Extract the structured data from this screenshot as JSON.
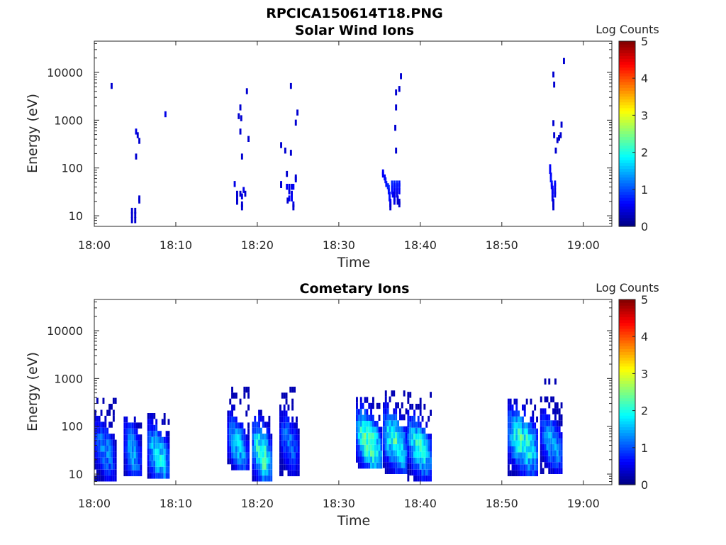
{
  "figure_title": "RPCICA150614T18.PNG",
  "chart_data": [
    {
      "type": "heatmap",
      "title": "Solar Wind Ions",
      "xlabel": "Time",
      "ylabel": "Energy (eV)",
      "x_ticks": [
        "18:00",
        "18:10",
        "18:20",
        "18:30",
        "18:40",
        "18:50",
        "19:00"
      ],
      "x_range_minutes": [
        0,
        63.5
      ],
      "y_scale": "log",
      "y_ticks": [
        "10",
        "100",
        "1000",
        "10000"
      ],
      "y_range": [
        6,
        45000
      ],
      "colorbar": {
        "label": "Log Counts",
        "ticks": [
          "0",
          "1",
          "2",
          "3",
          "4",
          "5"
        ],
        "range": [
          0,
          5
        ],
        "colormap": "jet"
      },
      "grid": false,
      "cells": [
        [
          2.0,
          4500,
          0.4
        ],
        [
          4.5,
          11,
          0.4
        ],
        [
          4.5,
          9,
          0.4
        ],
        [
          4.5,
          7,
          0.4
        ],
        [
          4.9,
          11,
          0.4
        ],
        [
          4.9,
          9,
          0.4
        ],
        [
          4.9,
          7,
          0.4
        ],
        [
          5.0,
          500,
          0.5
        ],
        [
          5.0,
          150,
          0.4
        ],
        [
          5.2,
          420,
          0.4
        ],
        [
          5.4,
          320,
          0.4
        ],
        [
          5.4,
          20,
          0.4
        ],
        [
          5.4,
          18,
          0.4
        ],
        [
          8.6,
          1150,
          0.5
        ],
        [
          17.1,
          40,
          0.5
        ],
        [
          17.4,
          25,
          0.4
        ],
        [
          17.4,
          20,
          0.4
        ],
        [
          17.4,
          17,
          0.4
        ],
        [
          17.6,
          1050,
          0.4
        ],
        [
          17.8,
          1600,
          0.4
        ],
        [
          17.8,
          500,
          0.4
        ],
        [
          17.8,
          25,
          0.4
        ],
        [
          17.9,
          950,
          0.4
        ],
        [
          18.0,
          150,
          0.4
        ],
        [
          18.0,
          22,
          0.5
        ],
        [
          18.0,
          15,
          0.4
        ],
        [
          18.0,
          13,
          0.4
        ],
        [
          18.2,
          30,
          0.5
        ],
        [
          18.4,
          25,
          0.4
        ],
        [
          18.6,
          3500,
          0.4
        ],
        [
          18.8,
          350,
          0.4
        ],
        [
          22.8,
          260,
          0.4
        ],
        [
          22.8,
          40,
          0.5
        ],
        [
          22.8,
          38,
          0.4
        ],
        [
          23.3,
          200,
          0.4
        ],
        [
          23.5,
          65,
          0.4
        ],
        [
          23.5,
          35,
          0.6
        ],
        [
          23.8,
          35,
          0.5
        ],
        [
          23.8,
          28,
          0.5
        ],
        [
          23.8,
          20,
          0.6
        ],
        [
          23.6,
          18,
          0.4
        ],
        [
          24.0,
          4500,
          0.4
        ],
        [
          24.0,
          180,
          0.4
        ],
        [
          24.1,
          35,
          0.5
        ],
        [
          24.1,
          25,
          0.5
        ],
        [
          24.1,
          20,
          0.6
        ],
        [
          24.3,
          35,
          0.6
        ],
        [
          24.3,
          15,
          0.5
        ],
        [
          24.3,
          13,
          0.4
        ],
        [
          24.6,
          770,
          0.4
        ],
        [
          24.6,
          50,
          0.5
        ],
        [
          24.6,
          55,
          0.4
        ],
        [
          24.8,
          1250,
          0.4
        ],
        [
          35.3,
          70,
          0.6
        ],
        [
          35.3,
          63,
          0.6
        ],
        [
          35.5,
          55,
          0.6
        ],
        [
          35.6,
          48,
          0.7
        ],
        [
          35.7,
          40,
          0.7
        ],
        [
          35.9,
          36,
          0.8
        ],
        [
          36.0,
          33,
          0.8
        ],
        [
          36.0,
          28,
          0.7
        ],
        [
          36.1,
          24,
          0.7
        ],
        [
          36.1,
          20,
          0.7
        ],
        [
          36.2,
          17,
          0.6
        ],
        [
          36.2,
          15,
          0.5
        ],
        [
          36.2,
          13,
          0.4
        ],
        [
          36.4,
          41,
          0.8
        ],
        [
          36.4,
          36,
          0.8
        ],
        [
          36.4,
          32,
          0.7
        ],
        [
          36.4,
          28,
          0.7
        ],
        [
          36.5,
          24,
          0.6
        ],
        [
          36.7,
          41,
          0.8
        ],
        [
          36.7,
          36,
          0.7
        ],
        [
          36.7,
          32,
          0.7
        ],
        [
          36.7,
          28,
          0.6
        ],
        [
          36.7,
          24,
          0.5
        ],
        [
          36.7,
          20,
          0.5
        ],
        [
          36.7,
          17,
          0.5
        ],
        [
          36.8,
          600,
          0.4
        ],
        [
          36.9,
          1600,
          0.4
        ],
        [
          36.9,
          200,
          0.4
        ],
        [
          36.9,
          3300,
          0.4
        ],
        [
          37.0,
          41,
          0.8
        ],
        [
          37.0,
          36,
          0.7
        ],
        [
          37.0,
          32,
          0.7
        ],
        [
          37.0,
          28,
          0.6
        ],
        [
          37.0,
          24,
          0.5
        ],
        [
          37.1,
          20,
          0.5
        ],
        [
          37.1,
          17,
          0.4
        ],
        [
          37.3,
          41,
          0.7
        ],
        [
          37.3,
          36,
          0.7
        ],
        [
          37.3,
          28,
          0.6
        ],
        [
          37.3,
          17,
          0.4
        ],
        [
          37.3,
          15,
          0.4
        ],
        [
          37.5,
          7200,
          0.4
        ],
        [
          37.3,
          3900,
          0.4
        ],
        [
          55.8,
          90,
          0.6
        ],
        [
          55.8,
          75,
          0.6
        ],
        [
          55.9,
          60,
          0.6
        ],
        [
          55.9,
          50,
          0.7
        ],
        [
          56.0,
          41,
          0.7
        ],
        [
          56.0,
          36,
          0.6
        ],
        [
          56.1,
          32,
          0.6
        ],
        [
          56.1,
          28,
          0.6
        ],
        [
          56.1,
          24,
          0.6
        ],
        [
          56.1,
          20,
          0.5
        ],
        [
          56.2,
          17,
          0.5
        ],
        [
          56.2,
          15,
          0.4
        ],
        [
          56.2,
          13,
          0.4
        ],
        [
          56.4,
          41,
          0.7
        ],
        [
          56.4,
          36,
          0.6
        ],
        [
          56.4,
          28,
          0.5
        ],
        [
          56.4,
          24,
          0.5
        ],
        [
          56.2,
          7800,
          0.4
        ],
        [
          56.3,
          4800,
          0.4
        ],
        [
          56.3,
          420,
          0.4
        ],
        [
          56.2,
          750,
          0.4
        ],
        [
          56.5,
          200,
          0.4
        ],
        [
          56.7,
          330,
          0.4
        ],
        [
          56.9,
          370,
          0.4
        ],
        [
          57.1,
          420,
          0.4
        ],
        [
          57.2,
          700,
          0.4
        ],
        [
          57.5,
          15000,
          0.4
        ]
      ]
    },
    {
      "type": "heatmap",
      "title": "Cometary Ions",
      "xlabel": "Time",
      "ylabel": "Energy (eV)",
      "x_ticks": [
        "18:00",
        "18:10",
        "18:20",
        "18:30",
        "18:40",
        "18:50",
        "19:00"
      ],
      "x_range_minutes": [
        0,
        63.5
      ],
      "y_scale": "log",
      "y_ticks": [
        "10",
        "100",
        "1000",
        "10000"
      ],
      "y_range": [
        6,
        45000
      ],
      "colorbar": {
        "label": "Log Counts",
        "ticks": [
          "0",
          "1",
          "2",
          "3",
          "4",
          "5"
        ],
        "range": [
          0,
          5
        ],
        "colormap": "jet"
      },
      "grid": false,
      "bursts": [
        {
          "center": 1.2,
          "width": 2.4,
          "peak_e": 28,
          "low_e": 7,
          "high_e": 300,
          "intensity": 1.3,
          "slope": 3.0
        },
        {
          "center": 4.6,
          "width": 2.0,
          "peak_e": 25,
          "low_e": 9,
          "high_e": 120,
          "intensity": 1.4,
          "slope": 2.5
        },
        {
          "center": 7.8,
          "width": 2.6,
          "peak_e": 20,
          "low_e": 8,
          "high_e": 150,
          "intensity": 1.8,
          "slope": 2.8
        },
        {
          "center": 17.5,
          "width": 2.4,
          "peak_e": 35,
          "low_e": 12,
          "high_e": 450,
          "intensity": 1.6,
          "slope": 3.2
        },
        {
          "center": 20.5,
          "width": 2.3,
          "peak_e": 22,
          "low_e": 7,
          "high_e": 160,
          "intensity": 2.2,
          "slope": 2.6
        },
        {
          "center": 23.8,
          "width": 2.2,
          "peak_e": 40,
          "low_e": 9,
          "high_e": 500,
          "intensity": 1.2,
          "slope": 3.0
        },
        {
          "center": 33.6,
          "width": 3.0,
          "peak_e": 40,
          "low_e": 13,
          "high_e": 350,
          "intensity": 2.4,
          "slope": 3.0
        },
        {
          "center": 36.8,
          "width": 2.8,
          "peak_e": 40,
          "low_e": 10,
          "high_e": 400,
          "intensity": 2.1,
          "slope": 3.0
        },
        {
          "center": 39.8,
          "width": 2.8,
          "peak_e": 30,
          "low_e": 7,
          "high_e": 350,
          "intensity": 2.0,
          "slope": 3.2
        },
        {
          "center": 52.5,
          "width": 3.6,
          "peak_e": 40,
          "low_e": 9,
          "high_e": 250,
          "intensity": 2.1,
          "slope": 2.8
        },
        {
          "center": 56.0,
          "width": 2.6,
          "peak_e": 40,
          "low_e": 10,
          "high_e": 650,
          "intensity": 1.5,
          "slope": 3.4
        }
      ]
    }
  ]
}
